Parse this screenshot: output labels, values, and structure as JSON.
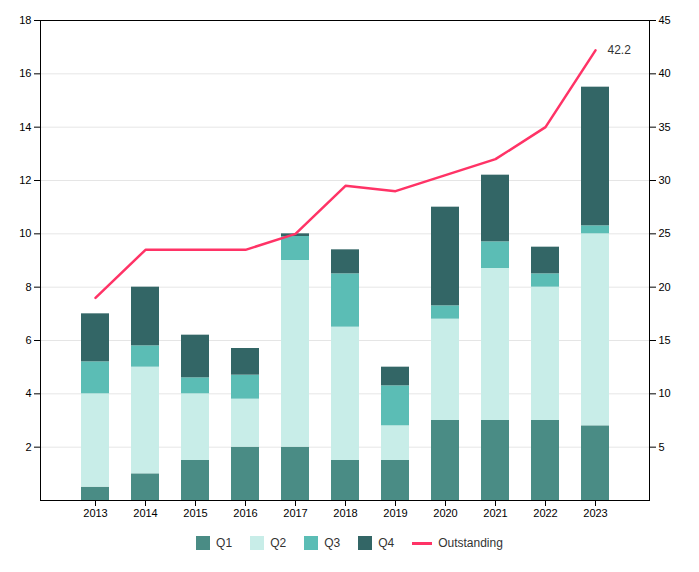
{
  "chart_data": {
    "type": "bar",
    "stacked": true,
    "grid": true,
    "legend": "bottom",
    "categories": [
      "2013",
      "2014",
      "2015",
      "2016",
      "2017",
      "2018",
      "2019",
      "2020",
      "2021",
      "2022",
      "2023"
    ],
    "series": [
      {
        "name": "Q1",
        "color": "#4a8c85",
        "values": [
          0.5,
          1.0,
          1.5,
          2.0,
          2.0,
          1.5,
          1.5,
          3.0,
          3.0,
          3.0,
          2.8
        ]
      },
      {
        "name": "Q2",
        "color": "#c8ede8",
        "values": [
          3.5,
          4.0,
          2.5,
          1.8,
          7.0,
          5.0,
          1.3,
          3.8,
          5.7,
          5.0,
          7.2
        ]
      },
      {
        "name": "Q3",
        "color": "#5bbdb5",
        "values": [
          1.2,
          0.8,
          0.6,
          0.9,
          0.9,
          2.0,
          1.5,
          0.5,
          1.0,
          0.5,
          0.3
        ]
      },
      {
        "name": "Q4",
        "color": "#336666",
        "values": [
          1.8,
          2.2,
          1.6,
          1.0,
          0.1,
          0.9,
          0.7,
          3.7,
          2.5,
          1.0,
          5.2
        ]
      },
      {
        "name": "Outstanding",
        "type": "line",
        "axis": "y2",
        "color": "#ff3366",
        "values": [
          19.0,
          23.5,
          23.5,
          23.5,
          25.0,
          29.5,
          29.0,
          30.5,
          32.0,
          35.0,
          42.2
        ]
      }
    ],
    "annotations": [
      {
        "text": "42.2",
        "series": "Outstanding",
        "x": "2023",
        "y": 42.2
      }
    ],
    "ylim": [
      0,
      18
    ],
    "yticks": [
      2,
      4,
      6,
      8,
      10,
      12,
      14,
      16,
      18
    ],
    "y2lim": [
      0,
      45
    ],
    "y2ticks": [
      5,
      10,
      15,
      20,
      25,
      30,
      35,
      40,
      45
    ]
  }
}
